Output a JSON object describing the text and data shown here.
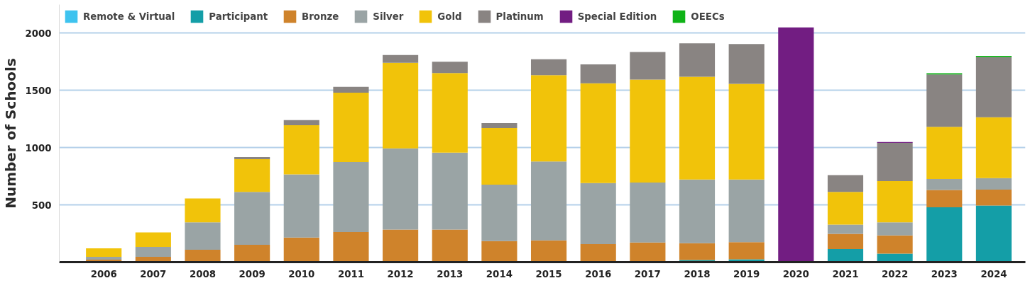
{
  "chart_data": {
    "type": "bar",
    "stacked": true,
    "ylabel": "Number of Schools",
    "categories": [
      "2006",
      "2007",
      "2008",
      "2009",
      "2010",
      "2011",
      "2012",
      "2013",
      "2014",
      "2015",
      "2016",
      "2017",
      "2018",
      "2019",
      "2020",
      "2021",
      "2022",
      "2023",
      "2024"
    ],
    "series": [
      {
        "name": "Remote & Virtual",
        "color": "#3ec3ef",
        "values": [
          null,
          null,
          null,
          null,
          null,
          null,
          null,
          null,
          null,
          null,
          null,
          null,
          null,
          null,
          null,
          8,
          null,
          null,
          8
        ]
      },
      {
        "name": "Participant",
        "color": "#149ea7",
        "values": [
          null,
          null,
          null,
          null,
          null,
          null,
          null,
          null,
          null,
          null,
          null,
          null,
          19,
          25,
          null,
          106,
          74,
          479,
          487
        ]
      },
      {
        "name": "Bronze",
        "color": "#cf832b",
        "values": [
          21,
          46,
          108,
          152,
          215,
          262,
          285,
          285,
          184,
          190,
          158,
          171,
          146,
          150,
          null,
          133,
          160,
          152,
          138
        ]
      },
      {
        "name": "Silver",
        "color": "#9aa4a5",
        "values": [
          25,
          87,
          240,
          462,
          551,
          612,
          709,
          671,
          493,
          690,
          532,
          525,
          557,
          547,
          null,
          80,
          114,
          95,
          101
        ]
      },
      {
        "name": "Gold",
        "color": "#f1c30a",
        "values": [
          74,
          127,
          209,
          285,
          430,
          607,
          747,
          696,
          494,
          753,
          873,
          899,
          898,
          835,
          null,
          287,
          359,
          456,
          532
        ]
      },
      {
        "name": "Platinum",
        "color": "#898482",
        "values": [
          null,
          null,
          null,
          19,
          45,
          51,
          69,
          99,
          44,
          139,
          165,
          241,
          292,
          348,
          null,
          146,
          335,
          458,
          525
        ]
      },
      {
        "name": "Special Edition",
        "color": "#721d82",
        "values": [
          null,
          null,
          null,
          null,
          null,
          null,
          null,
          null,
          null,
          null,
          null,
          null,
          null,
          null,
          2050,
          null,
          7,
          null,
          null
        ]
      },
      {
        "name": "OEECs",
        "color": "#0fb317",
        "values": [
          null,
          null,
          null,
          null,
          null,
          null,
          null,
          null,
          null,
          null,
          null,
          null,
          null,
          null,
          null,
          null,
          null,
          10,
          11
        ]
      }
    ],
    "ylim": [
      0,
      2250
    ],
    "yticks": [
      500,
      1000,
      1500,
      2000
    ],
    "grid": "y",
    "legend": "top left"
  }
}
